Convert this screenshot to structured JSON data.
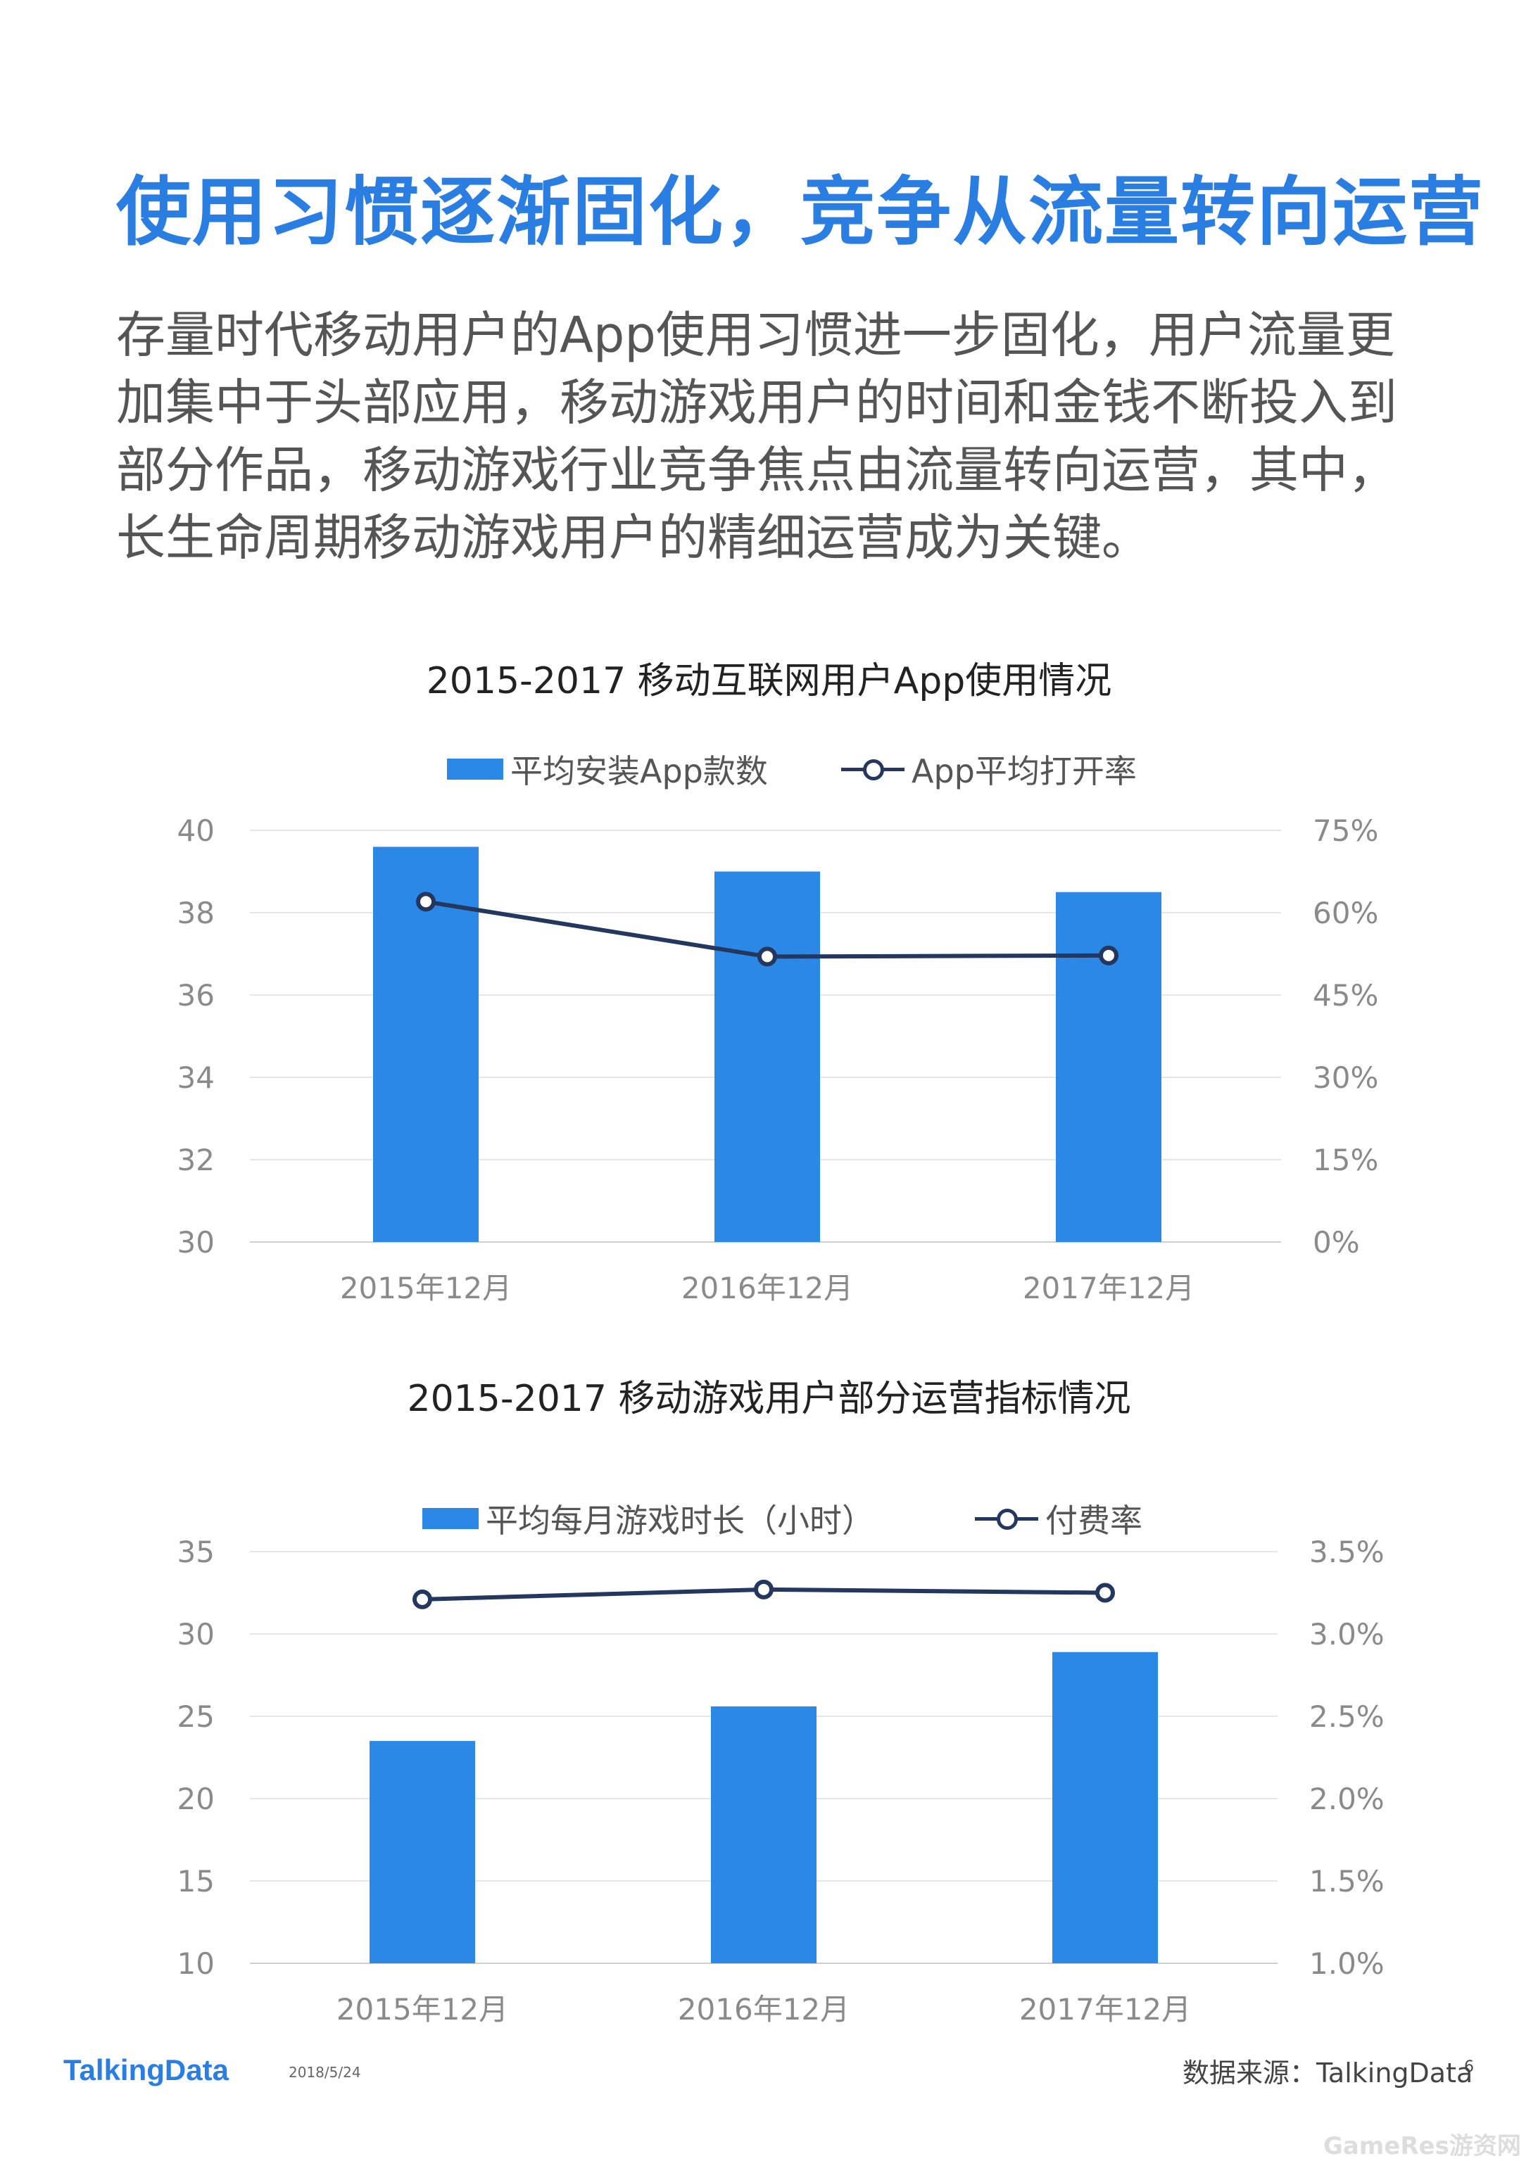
{
  "page": {
    "title": "使用习惯逐渐固化，竞争从流量转向运营",
    "paragraph": "存量时代移动用户的App使用习惯进一步固化，用户流量更加集中于头部应用，移动游戏用户的时间和金钱不断投入到部分作品，移动游戏行业竞争焦点由流量转向运营，其中，长生命周期移动游戏用户的精细运营成为关键。",
    "source": "数据来源：TalkingData",
    "logo": "TalkingData",
    "date": "2018/5/24",
    "page_number": "6",
    "watermark": "GameRes游资网"
  },
  "colors": {
    "accent": "#2a7de1",
    "bar": "#2b88e6",
    "line": "#24375f",
    "grid": "#e6e6e6",
    "axis_text": "#8a8a8a"
  },
  "chart_data": [
    {
      "type": "bar",
      "title": "2015-2017 移动互联网用户App使用情况",
      "categories": [
        "2015年12月",
        "2016年12月",
        "2017年12月"
      ],
      "series": [
        {
          "name": "平均安装App款数",
          "type": "bar",
          "axis": "left",
          "values": [
            39.6,
            39.0,
            38.5
          ]
        },
        {
          "name": "App平均打开率",
          "type": "line",
          "axis": "right",
          "values": [
            0.62,
            0.52,
            0.522
          ]
        }
      ],
      "ylim": [
        30,
        40
      ],
      "y_ticks": [
        "40",
        "38",
        "36",
        "34",
        "32",
        "30"
      ],
      "y2lim": [
        0,
        0.75
      ],
      "y2_ticks": [
        "75%",
        "60%",
        "45%",
        "30%",
        "15%",
        "0%"
      ],
      "grid": true,
      "legend": "top-center"
    },
    {
      "type": "bar",
      "title": "2015-2017 移动游戏用户部分运营指标情况",
      "categories": [
        "2015年12月",
        "2016年12月",
        "2017年12月"
      ],
      "series": [
        {
          "name": "平均每月游戏时长（小时）",
          "type": "bar",
          "axis": "left",
          "values": [
            23.5,
            25.6,
            28.9
          ]
        },
        {
          "name": "付费率",
          "type": "line",
          "axis": "right",
          "values": [
            0.0321,
            0.0327,
            0.0325
          ]
        }
      ],
      "ylim": [
        10,
        35
      ],
      "y_ticks": [
        "35",
        "30",
        "25",
        "20",
        "15",
        "10"
      ],
      "y2lim": [
        0.01,
        0.035
      ],
      "y2_ticks": [
        "3.5%",
        "3.0%",
        "2.5%",
        "2.0%",
        "1.5%",
        "1.0%"
      ],
      "grid": true,
      "legend": "top-center"
    }
  ]
}
